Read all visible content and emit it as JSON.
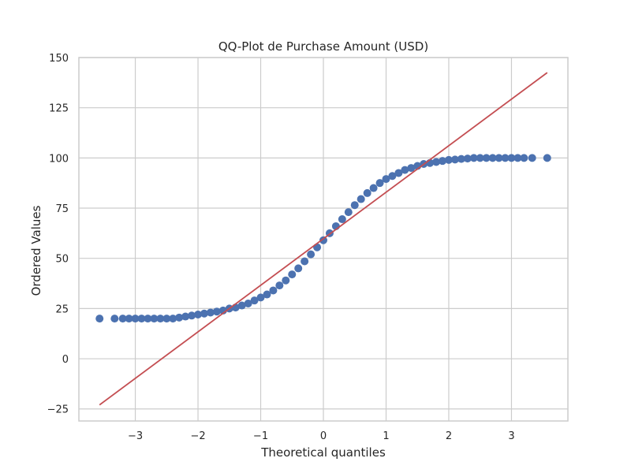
{
  "chart_data": {
    "type": "scatter",
    "title": "QQ-Plot de Purchase Amount (USD)",
    "xlabel": "Theoretical quantiles",
    "ylabel": "Ordered Values",
    "xlim": [
      -3.9,
      3.9
    ],
    "ylim": [
      -31,
      150
    ],
    "x_ticks": [
      -3,
      -2,
      -1,
      0,
      1,
      2,
      3
    ],
    "x_tick_labels": [
      "−3",
      "−2",
      "−1",
      "0",
      "1",
      "2",
      "3"
    ],
    "y_ticks": [
      -25,
      0,
      25,
      50,
      75,
      100,
      125,
      150
    ],
    "y_tick_labels": [
      "−25",
      "0",
      "25",
      "50",
      "75",
      "100",
      "125",
      "150"
    ],
    "grid": true,
    "series": [
      {
        "kind": "scatter",
        "color": "#4c72b0",
        "points": [
          [
            -3.57,
            20
          ],
          [
            -3.33,
            20
          ],
          [
            -3.2,
            20
          ],
          [
            -3.1,
            20
          ],
          [
            -3.0,
            20
          ],
          [
            -2.9,
            20
          ],
          [
            -2.8,
            20
          ],
          [
            -2.7,
            20
          ],
          [
            -2.6,
            20
          ],
          [
            -2.5,
            20
          ],
          [
            -2.4,
            20
          ],
          [
            -2.3,
            20.5
          ],
          [
            -2.2,
            21
          ],
          [
            -2.1,
            21.5
          ],
          [
            -2.0,
            22
          ],
          [
            -1.9,
            22.5
          ],
          [
            -1.8,
            23
          ],
          [
            -1.7,
            23.5
          ],
          [
            -1.6,
            24
          ],
          [
            -1.5,
            25
          ],
          [
            -1.4,
            25.5
          ],
          [
            -1.3,
            26.5
          ],
          [
            -1.2,
            27.5
          ],
          [
            -1.1,
            29
          ],
          [
            -1.0,
            30.5
          ],
          [
            -0.9,
            32
          ],
          [
            -0.8,
            34
          ],
          [
            -0.7,
            36.5
          ],
          [
            -0.6,
            39
          ],
          [
            -0.5,
            42
          ],
          [
            -0.4,
            45
          ],
          [
            -0.3,
            48.5
          ],
          [
            -0.2,
            52
          ],
          [
            -0.1,
            55.5
          ],
          [
            0.0,
            59
          ],
          [
            0.1,
            62.5
          ],
          [
            0.2,
            66
          ],
          [
            0.3,
            69.5
          ],
          [
            0.4,
            73
          ],
          [
            0.5,
            76.5
          ],
          [
            0.6,
            79.5
          ],
          [
            0.7,
            82.5
          ],
          [
            0.8,
            85
          ],
          [
            0.9,
            87.5
          ],
          [
            1.0,
            89.5
          ],
          [
            1.1,
            91
          ],
          [
            1.2,
            92.5
          ],
          [
            1.3,
            94
          ],
          [
            1.4,
            95
          ],
          [
            1.5,
            96
          ],
          [
            1.6,
            97
          ],
          [
            1.7,
            97.5
          ],
          [
            1.8,
            98
          ],
          [
            1.9,
            98.5
          ],
          [
            2.0,
            99
          ],
          [
            2.1,
            99.2
          ],
          [
            2.2,
            99.5
          ],
          [
            2.3,
            99.7
          ],
          [
            2.4,
            100
          ],
          [
            2.5,
            100
          ],
          [
            2.6,
            100
          ],
          [
            2.7,
            100
          ],
          [
            2.8,
            100
          ],
          [
            2.9,
            100
          ],
          [
            3.0,
            100
          ],
          [
            3.1,
            100
          ],
          [
            3.2,
            100
          ],
          [
            3.33,
            100
          ],
          [
            3.57,
            100
          ]
        ]
      },
      {
        "kind": "line",
        "color": "#c44e52",
        "points": [
          [
            -3.57,
            -23
          ],
          [
            3.57,
            142.5
          ]
        ]
      }
    ]
  }
}
